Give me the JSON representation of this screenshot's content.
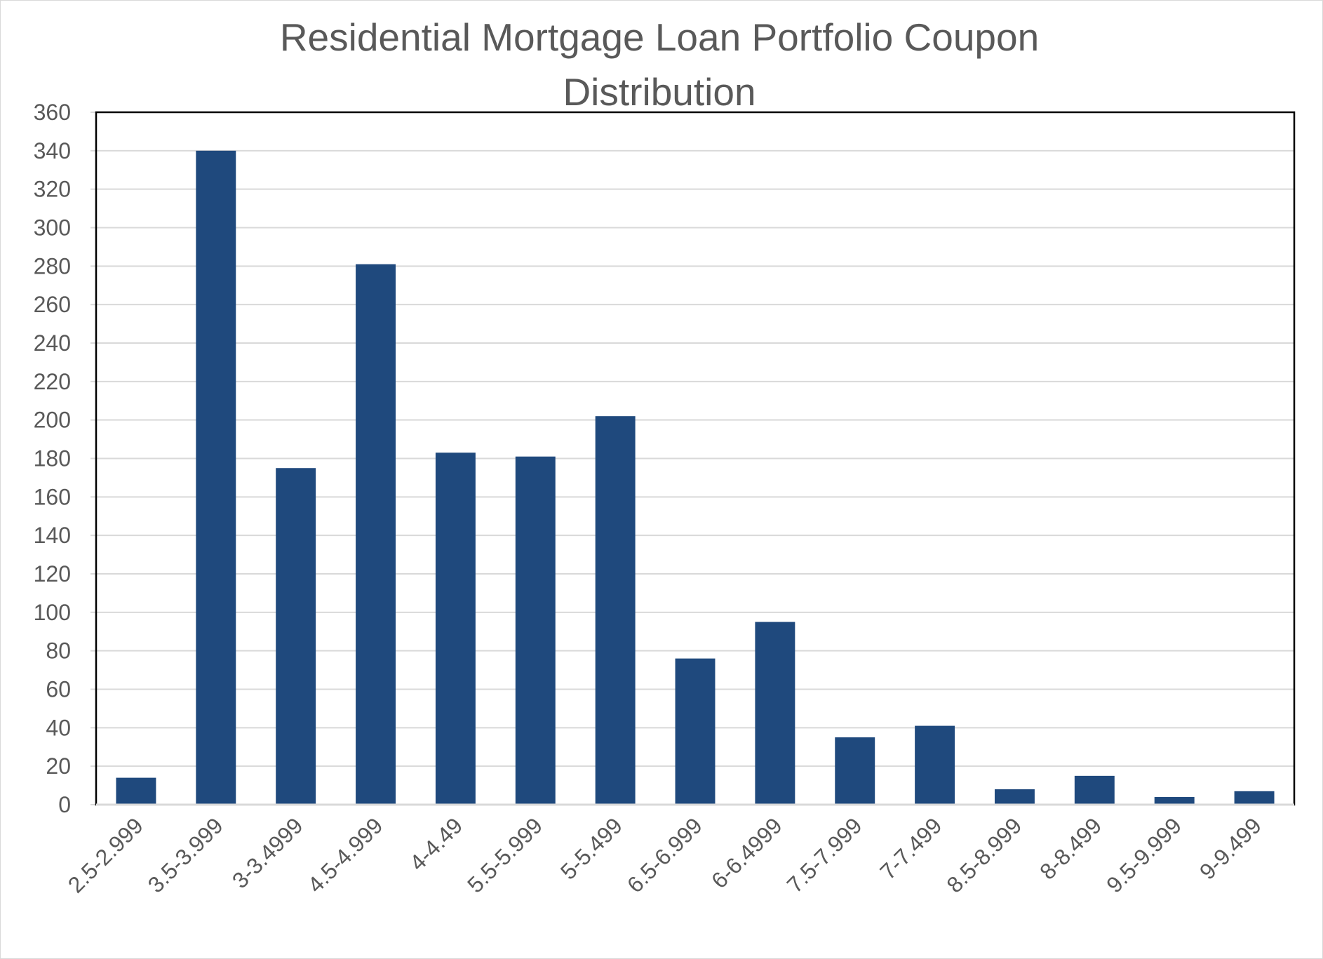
{
  "chart_data": {
    "type": "bar",
    "title": "Residential Mortgage Loan Portfolio Coupon Distribution",
    "xlabel": "",
    "ylabel": "",
    "categories": [
      "2.5-2.999",
      "3.5-3.999",
      "3-3.4999",
      "4.5-4.999",
      "4-4.49",
      "5.5-5.999",
      "5-5.499",
      "6.5-6.999",
      "6-6.4999",
      "7.5-7.999",
      "7-7.499",
      "8.5-8.999",
      "8-8.499",
      "9.5-9.999",
      "9-9.499"
    ],
    "values": [
      14,
      340,
      175,
      281,
      183,
      181,
      202,
      76,
      95,
      35,
      41,
      8,
      15,
      4,
      7
    ],
    "ylim": [
      0,
      360
    ],
    "yticks": [
      0,
      20,
      40,
      60,
      80,
      100,
      120,
      140,
      160,
      180,
      200,
      220,
      240,
      260,
      280,
      300,
      320,
      340,
      360
    ],
    "grid": true,
    "legend": "none",
    "colors": {
      "bar": "#1f497d",
      "grid": "#d9d9d9",
      "text": "#595959",
      "plot_border": "#000000"
    }
  }
}
